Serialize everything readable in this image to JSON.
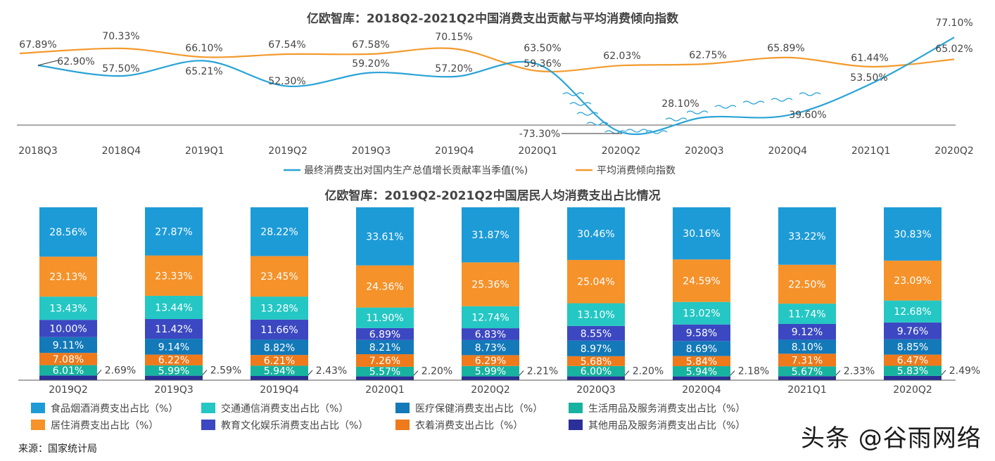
{
  "colors": {
    "contribution": "#2aa3d6",
    "propensity": "#f39a2e",
    "food": "#1d9bd7",
    "housing": "#f5922a",
    "transport": "#24c7c3",
    "education": "#3b48c1",
    "medical": "#1379b8",
    "daily": "#17b3a0",
    "clothing": "#ee7a1b",
    "other": "#2a2f99",
    "text": "#444444"
  },
  "source": "来源：国家统计局",
  "watermark": "头条 @谷雨网络",
  "chart_data": [
    {
      "type": "line",
      "title": "亿欧智库：2018Q2-2021Q2中国消费支出贡献与平均消费倾向指数",
      "x": [
        "2018Q3",
        "2018Q4",
        "2019Q1",
        "2019Q2",
        "2019Q3",
        "2019Q4",
        "2020Q1",
        "2020Q2",
        "2020Q3",
        "2020Q4",
        "2021Q1",
        "2020Q2"
      ],
      "series": [
        {
          "name": "最终消费支出对国内生产总值增长贡献率当季值(%)",
          "color_key": "contribution",
          "values": [
            62.9,
            57.5,
            65.21,
            52.3,
            59.2,
            57.2,
            63.5,
            -73.3,
            28.1,
            39.6,
            53.5,
            77.1
          ],
          "labels": [
            "62.90%",
            "57.50%",
            "65.21%",
            "52.30%",
            "59.20%",
            "57.20%",
            "63.50%",
            "-73.30%",
            "28.10%",
            "39.60%",
            "53.50%",
            "77.10%"
          ]
        },
        {
          "name": "平均消费倾向指数",
          "color_key": "propensity",
          "values": [
            67.89,
            70.33,
            66.1,
            67.54,
            67.58,
            70.15,
            59.36,
            62.03,
            62.75,
            65.89,
            61.44,
            65.02
          ],
          "labels": [
            "67.89%",
            "70.33%",
            "66.10%",
            "67.54%",
            "67.58%",
            "70.15%",
            "59.36%",
            "62.03%",
            "62.75%",
            "65.89%",
            "61.44%",
            "65.02%"
          ]
        }
      ],
      "axis_break": true,
      "grid": false,
      "legend_position": "bottom"
    },
    {
      "type": "bar",
      "stacked": true,
      "title": "亿欧智库：2019Q2-2021Q2中国居民人均消费支出占比情况",
      "categories": [
        "2019Q2",
        "2019Q3",
        "2019Q4",
        "2020Q1",
        "2020Q2",
        "2020Q3",
        "2020Q4",
        "2021Q1",
        "2020Q2"
      ],
      "series": [
        {
          "name": "其他用品及服务消费支出占比（%）",
          "color_key": "other",
          "values": [
            2.69,
            2.59,
            2.43,
            2.2,
            2.21,
            2.2,
            2.18,
            2.33,
            2.49
          ],
          "labels": [
            "2.69%",
            "2.59%",
            "2.43%",
            "2.20%",
            "2.21%",
            "2.20%",
            "2.18%",
            "2.33%",
            "2.49%"
          ]
        },
        {
          "name": "生活用品及服务消费支出占比（%）",
          "color_key": "daily",
          "values": [
            6.01,
            5.99,
            5.94,
            5.57,
            5.99,
            6.0,
            5.94,
            5.67,
            5.83
          ],
          "labels": [
            "6.01%",
            "5.99%",
            "5.94%",
            "5.57%",
            "5.99%",
            "6.00%",
            "5.94%",
            "5.67%",
            "5.83%"
          ]
        },
        {
          "name": "衣着消费支出占比（%）",
          "color_key": "clothing",
          "values": [
            7.08,
            6.22,
            6.21,
            7.26,
            6.29,
            5.68,
            5.84,
            7.31,
            6.47
          ],
          "labels": [
            "7.08%",
            "6.22%",
            "6.21%",
            "7.26%",
            "6.29%",
            "5.68%",
            "5.84%",
            "7.31%",
            "6.47%"
          ]
        },
        {
          "name": "医疗保健消费支出占比（%）",
          "color_key": "medical",
          "values": [
            9.11,
            9.14,
            8.82,
            8.21,
            8.73,
            8.97,
            8.69,
            8.1,
            8.85
          ],
          "labels": [
            "9.11%",
            "9.14%",
            "8.82%",
            "8.21%",
            "8.73%",
            "8.97%",
            "8.69%",
            "8.10%",
            "8.85%"
          ]
        },
        {
          "name": "教育文化娱乐消费支出占比（%）",
          "color_key": "education",
          "values": [
            10.0,
            11.42,
            11.66,
            6.89,
            6.83,
            8.55,
            9.58,
            9.12,
            9.76
          ],
          "labels": [
            "10.00%",
            "11.42%",
            "11.66%",
            "6.89%",
            "6.83%",
            "8.55%",
            "9.58%",
            "9.12%",
            "9.76%"
          ]
        },
        {
          "name": "交通通信消费支出占比（%）",
          "color_key": "transport",
          "values": [
            13.43,
            13.44,
            13.28,
            11.9,
            12.74,
            13.1,
            13.02,
            11.74,
            12.68
          ],
          "labels": [
            "13.43%",
            "13.44%",
            "13.28%",
            "11.90%",
            "12.74%",
            "13.10%",
            "13.02%",
            "11.74%",
            "12.68%"
          ]
        },
        {
          "name": "居住消费支出占比（%）",
          "color_key": "housing",
          "values": [
            23.13,
            23.33,
            23.45,
            24.36,
            25.36,
            25.04,
            24.59,
            22.5,
            23.09
          ],
          "labels": [
            "23.13%",
            "23.33%",
            "23.45%",
            "24.36%",
            "25.36%",
            "25.04%",
            "24.59%",
            "22.50%",
            "23.09%"
          ]
        },
        {
          "name": "食品烟酒消费支出占比（%）",
          "color_key": "food",
          "values": [
            28.56,
            27.87,
            28.22,
            33.61,
            31.87,
            30.46,
            30.16,
            33.22,
            30.83
          ],
          "labels": [
            "28.56%",
            "27.87%",
            "28.22%",
            "33.61%",
            "31.87%",
            "30.46%",
            "30.16%",
            "33.22%",
            "30.83%"
          ]
        }
      ],
      "legend": [
        {
          "label": "食品烟酒消费支出占比（%）",
          "color_key": "food"
        },
        {
          "label": "交通通信消费支出占比（%）",
          "color_key": "transport"
        },
        {
          "label": "医疗保健消费支出占比（%）",
          "color_key": "medical"
        },
        {
          "label": "生活用品及服务消费支出占比（%）",
          "color_key": "daily"
        },
        {
          "label": "居住消费支出占比（%）",
          "color_key": "housing"
        },
        {
          "label": "教育文化娱乐消费支出占比（%）",
          "color_key": "education"
        },
        {
          "label": "衣着消费支出占比（%）",
          "color_key": "clothing"
        },
        {
          "label": "其他用品及服务消费支出占比（%）",
          "color_key": "other"
        }
      ],
      "legend_position": "bottom",
      "ylim": [
        0,
        100
      ]
    }
  ]
}
